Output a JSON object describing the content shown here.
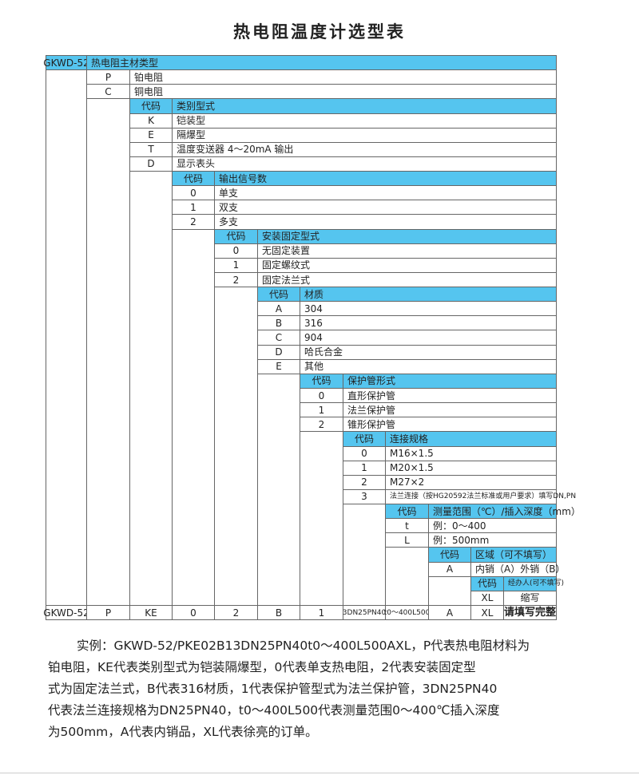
{
  "title": "热电阻温度计选型表",
  "colors": {
    "header_bg": "#55c5ef",
    "border": "#666666"
  },
  "sections": [
    {
      "code_header": "GKWD-52",
      "title": "热电阻主材类型",
      "items": [
        {
          "code": "P",
          "text": "铂电阻"
        },
        {
          "code": "C",
          "text": "铜电阻"
        }
      ]
    },
    {
      "code_header": "代码",
      "title": "类别型式",
      "items": [
        {
          "code": "K",
          "text": "铠装型"
        },
        {
          "code": "E",
          "text": "隔爆型"
        },
        {
          "code": "T",
          "text": "温度变送器 4～20mA 输出"
        },
        {
          "code": "D",
          "text": "显示表头"
        }
      ]
    },
    {
      "code_header": "代码",
      "title": "输出信号数",
      "items": [
        {
          "code": "0",
          "text": "单支"
        },
        {
          "code": "1",
          "text": "双支"
        },
        {
          "code": "2",
          "text": "多支"
        }
      ]
    },
    {
      "code_header": "代码",
      "title": "安装固定型式",
      "items": [
        {
          "code": "0",
          "text": "无固定装置"
        },
        {
          "code": "1",
          "text": "固定螺纹式"
        },
        {
          "code": "2",
          "text": "固定法兰式"
        }
      ]
    },
    {
      "code_header": "代码",
      "title": "材质",
      "items": [
        {
          "code": "A",
          "text": "304"
        },
        {
          "code": "B",
          "text": "316"
        },
        {
          "code": "C",
          "text": "904"
        },
        {
          "code": "D",
          "text": "哈氏合金"
        },
        {
          "code": "E",
          "text": "其他"
        }
      ]
    },
    {
      "code_header": "代码",
      "title": "保护管形式",
      "items": [
        {
          "code": "0",
          "text": "直形保护管"
        },
        {
          "code": "1",
          "text": "法兰保护管"
        },
        {
          "code": "2",
          "text": "锥形保护管"
        }
      ]
    },
    {
      "code_header": "代码",
      "title": "连接规格",
      "items": [
        {
          "code": "0",
          "text": "M16×1.5"
        },
        {
          "code": "1",
          "text": "M20×1.5"
        },
        {
          "code": "2",
          "text": "M27×2"
        },
        {
          "code": "3",
          "text": "法兰连接（按HG20592法兰标准或用户要求）填写DN,PN"
        }
      ]
    },
    {
      "code_header": "代码",
      "title": "测量范围（℃）/插入深度（mm）",
      "items": [
        {
          "code": "t",
          "text": "例：0～400"
        },
        {
          "code": "L",
          "text": "例：500mm"
        }
      ]
    },
    {
      "code_header": "代码",
      "title": "区域（可不填写）",
      "items": [
        {
          "code": "A",
          "text": "内销（A）外销（B）"
        }
      ]
    },
    {
      "code_header": "代码",
      "title": "经办人(可不填写)",
      "items": [
        {
          "code": "XL",
          "text": "缩写"
        }
      ]
    }
  ],
  "example_row": [
    "GKWD-52",
    "P",
    "KE",
    "0",
    "2",
    "B",
    "1",
    "3DN25PN40",
    "t0～400L500",
    "A",
    "XL",
    "请填写完整"
  ],
  "description_lines": [
    "实例：GKWD-52/PKE02B13DN25PN40t0～400L500AXL，P代表热电阻材料为",
    "铂电阻，KE代表类别型式为铠装隔爆型，0代表单支热电阻，2代表安装固定型",
    "式为固定法兰式，B代表316材质，1代表保护管型式为法兰保护管，3DN25PN40",
    "代表法兰连接规格为DN25PN40，t0～400L500代表测量范围0～400℃插入深度",
    "为500mm，A代表内销品，XL代表徐亮的订单。"
  ]
}
